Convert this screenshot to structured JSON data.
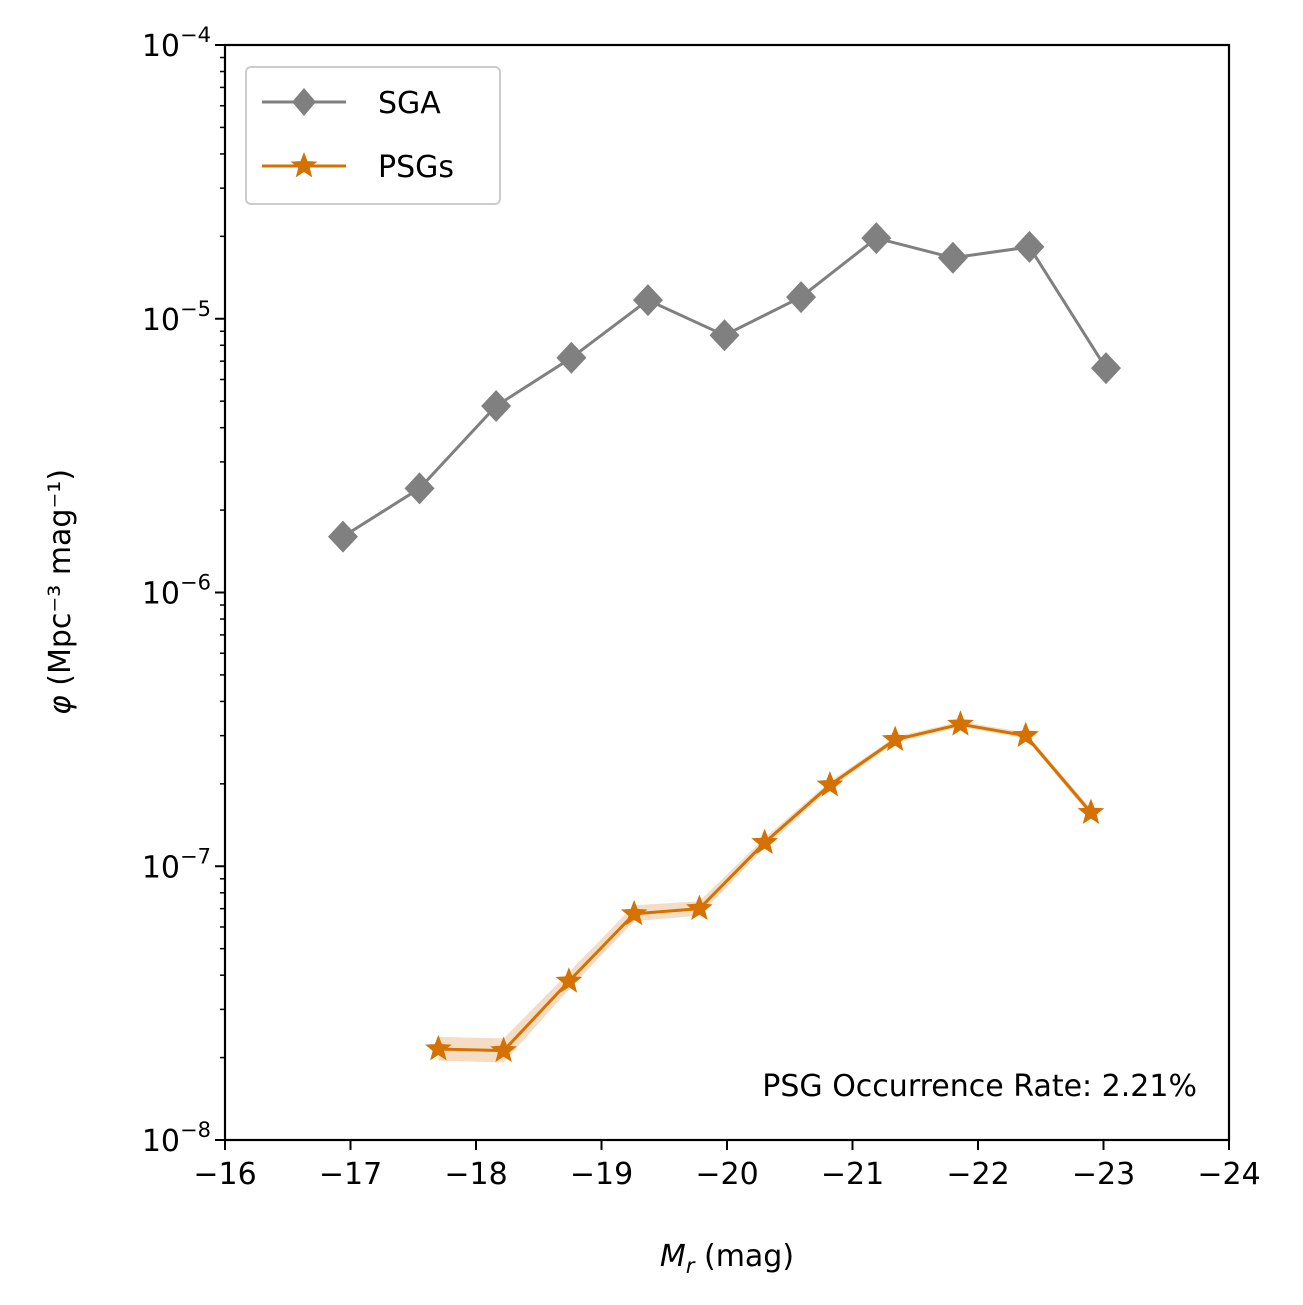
{
  "chart_data": {
    "type": "line",
    "title": "",
    "xlabel_var": "M",
    "xlabel_sub": "r",
    "xlabel_unit": " (mag)",
    "ylabel_var": "φ",
    "ylabel_unit": " (Mpc⁻³ mag⁻¹)",
    "xlim": [
      -16,
      -24
    ],
    "ylim": [
      1e-08,
      0.0001
    ],
    "yscale": "log",
    "x_ticks": [
      -16,
      -17,
      -18,
      -19,
      -20,
      -21,
      -22,
      -23,
      -24
    ],
    "x_tick_labels": [
      "−16",
      "−17",
      "−18",
      "−19",
      "−20",
      "−21",
      "−22",
      "−23",
      "−24"
    ],
    "y_ticks": [
      1e-08,
      1e-07,
      1e-06,
      1e-05,
      0.0001
    ],
    "y_tick_labels": [
      {
        "base": "10",
        "exp": "−8"
      },
      {
        "base": "10",
        "exp": "−7"
      },
      {
        "base": "10",
        "exp": "−6"
      },
      {
        "base": "10",
        "exp": "−5"
      },
      {
        "base": "10",
        "exp": "−4"
      }
    ],
    "legend_position": "upper-left",
    "series": [
      {
        "name": "SGA",
        "color": "#808080",
        "marker": "diamond",
        "x": [
          -16.94,
          -17.55,
          -18.16,
          -18.76,
          -19.37,
          -19.98,
          -20.59,
          -21.19,
          -21.8,
          -22.41,
          -23.02
        ],
        "y": [
          1.6e-06,
          2.4e-06,
          4.8e-06,
          7.2e-06,
          1.17e-05,
          8.7e-06,
          1.2e-05,
          1.97e-05,
          1.67e-05,
          1.83e-05,
          6.6e-06
        ]
      },
      {
        "name": "PSGs",
        "color": "#d47100",
        "band_color": "#f5dcc4",
        "marker": "star",
        "x": [
          -17.7,
          -18.22,
          -18.74,
          -19.26,
          -19.78,
          -20.3,
          -20.82,
          -21.34,
          -21.86,
          -22.38,
          -22.9
        ],
        "y": [
          2.15e-08,
          2.12e-08,
          3.8e-08,
          6.7e-08,
          7e-08,
          1.22e-07,
          1.98e-07,
          2.9e-07,
          3.3e-07,
          3e-07,
          1.57e-07
        ],
        "y_low": [
          1.95e-08,
          1.92e-08,
          3.55e-08,
          6.3e-08,
          6.6e-08,
          1.17e-07,
          1.92e-07,
          2.83e-07,
          3.23e-07,
          2.93e-07,
          1.52e-07
        ],
        "y_high": [
          2.38e-08,
          2.35e-08,
          4.1e-08,
          7.2e-08,
          7.45e-08,
          1.27e-07,
          2.04e-07,
          2.97e-07,
          3.38e-07,
          3.08e-07,
          1.62e-07
        ]
      }
    ],
    "annotation": "PSG Occurrence Rate: 2.21%"
  }
}
